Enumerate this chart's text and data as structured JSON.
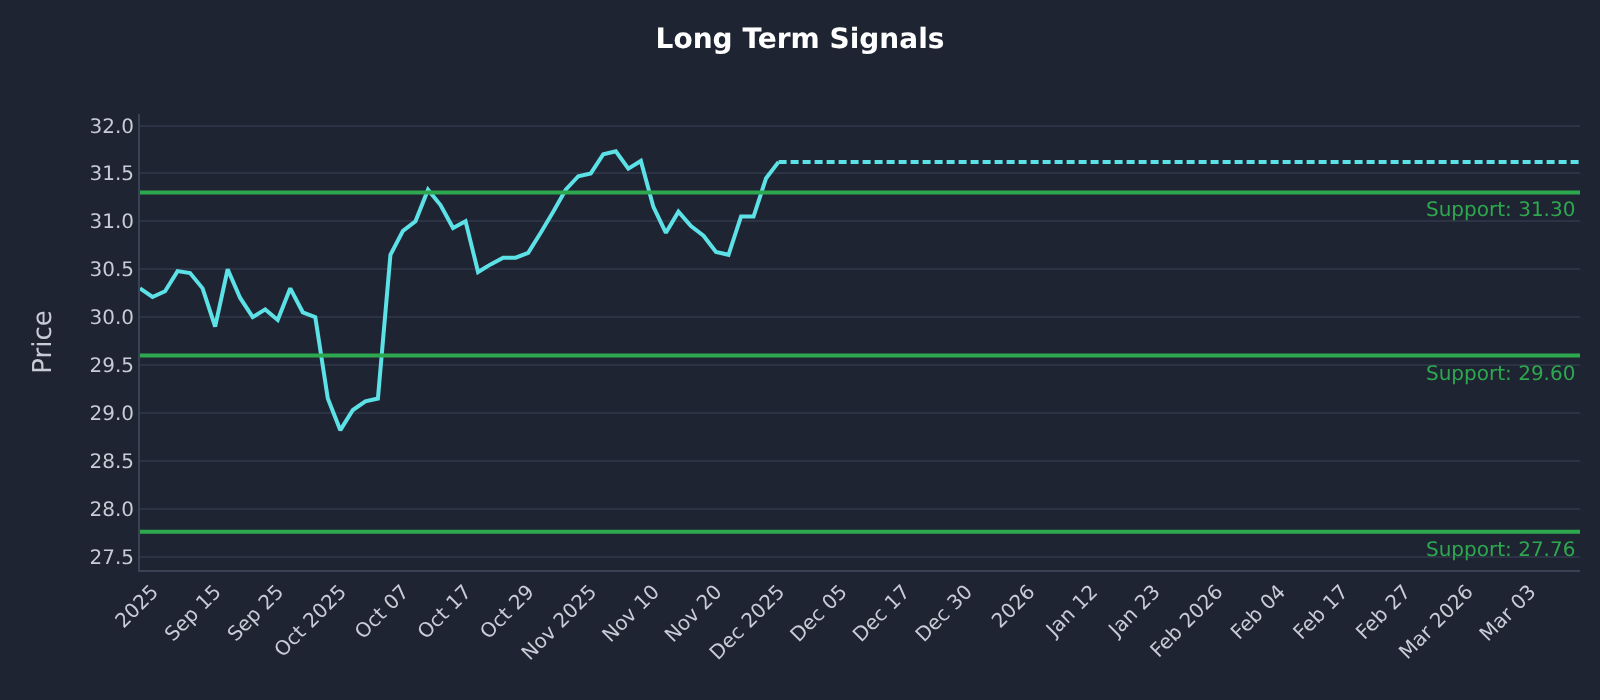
{
  "chart_data": {
    "type": "line",
    "title": "Long Term Signals",
    "ylabel": "Price",
    "categories": [
      null,
      "2025",
      null,
      null,
      null,
      null,
      "Sep 15",
      null,
      null,
      null,
      null,
      "Sep 25",
      null,
      null,
      null,
      null,
      "Oct 2025",
      null,
      null,
      null,
      null,
      "Oct 07",
      null,
      null,
      null,
      null,
      "Oct 17",
      null,
      null,
      null,
      null,
      "Oct 29",
      null,
      null,
      null,
      null,
      "Nov 2025",
      null,
      null,
      null,
      null,
      "Nov 10",
      null,
      null,
      null,
      null,
      "Nov 20",
      null,
      null,
      null,
      null,
      "Dec 2025",
      null,
      null,
      null,
      null,
      "Dec 05",
      null,
      null,
      null,
      null,
      "Dec 17",
      null,
      null,
      null,
      null,
      "Dec 30",
      null,
      null,
      null,
      null,
      "2026",
      null,
      null,
      null,
      null,
      "Jan 12",
      null,
      null,
      null,
      null,
      "Jan 23",
      null,
      null,
      null,
      null,
      "Feb 2026",
      null,
      null,
      null,
      null,
      "Feb 04",
      null,
      null,
      null,
      null,
      "Feb 17",
      null,
      null,
      null,
      null,
      "Feb 27",
      null,
      null,
      null,
      null,
      "Mar 2026",
      null,
      null,
      null,
      null,
      "Mar 03",
      null,
      null,
      null,
      null
    ],
    "series": [
      {
        "color": "#5ce1e6",
        "line_style": "solid",
        "values": [
          30.3,
          30.21,
          30.27,
          30.48,
          30.46,
          30.3,
          29.9,
          30.5,
          30.2,
          30.0,
          30.08,
          29.97,
          30.3,
          30.05,
          30.0,
          29.15,
          28.82,
          29.03,
          29.12,
          29.15,
          30.65,
          30.9,
          31.0,
          31.33,
          31.17,
          30.93,
          31.0,
          30.47,
          30.55,
          30.62,
          30.62,
          30.67,
          30.88,
          31.1,
          31.33,
          31.47,
          31.5,
          31.7,
          31.73,
          31.55,
          31.63,
          31.15,
          30.88,
          31.1,
          30.95,
          30.85,
          30.68,
          30.65,
          31.05,
          31.05,
          31.45,
          31.62,
          null,
          null,
          null,
          null,
          null,
          null,
          null,
          null,
          null,
          null,
          null,
          null,
          null,
          null,
          null,
          null,
          null,
          null,
          null,
          null,
          null,
          null,
          null,
          null,
          null,
          null,
          null,
          null,
          null,
          null,
          null,
          null,
          null,
          null,
          null,
          null,
          null,
          null,
          null,
          null,
          null,
          null,
          null,
          null,
          null,
          null,
          null,
          null,
          null,
          null,
          null,
          null,
          null,
          null,
          null,
          null,
          null,
          null,
          null,
          null,
          null,
          null,
          null,
          null
        ]
      },
      {
        "color": "#5ce1e6",
        "line_style": "dashed",
        "values": [
          null,
          null,
          null,
          null,
          null,
          null,
          null,
          null,
          null,
          null,
          null,
          null,
          null,
          null,
          null,
          null,
          null,
          null,
          null,
          null,
          null,
          null,
          null,
          null,
          null,
          null,
          null,
          null,
          null,
          null,
          null,
          null,
          null,
          null,
          null,
          null,
          null,
          null,
          null,
          null,
          null,
          null,
          null,
          null,
          null,
          null,
          null,
          null,
          null,
          null,
          null,
          31.62,
          31.62,
          31.62,
          31.62,
          31.62,
          31.62,
          31.62,
          31.62,
          31.62,
          31.62,
          31.62,
          31.62,
          31.62,
          31.62,
          31.62,
          31.62,
          31.62,
          31.62,
          31.62,
          31.62,
          31.62,
          31.62,
          31.62,
          31.62,
          31.62,
          31.62,
          31.62,
          31.62,
          31.62,
          31.62,
          31.62,
          31.62,
          31.62,
          31.62,
          31.62,
          31.62,
          31.62,
          31.62,
          31.62,
          31.62,
          31.62,
          31.62,
          31.62,
          31.62,
          31.62,
          31.62,
          31.62,
          31.62,
          31.62,
          31.62,
          31.62,
          31.62,
          31.62,
          31.62,
          31.62,
          31.62,
          31.62,
          31.62,
          31.62,
          31.62,
          31.62,
          31.62,
          31.62,
          31.62,
          31.62
        ]
      }
    ],
    "ylim": [
      27.36,
      32.12
    ],
    "yticks": [
      27.5,
      {
        "value": 28,
        "label": "28.0"
      },
      28.5,
      {
        "value": 29,
        "label": "29.0"
      },
      29.5,
      {
        "value": 30,
        "label": "30.0"
      },
      30.5,
      {
        "value": 31,
        "label": "31.0"
      },
      31.5,
      {
        "value": 32,
        "label": "32.0"
      }
    ],
    "ref_lines": [
      {
        "axis": "y",
        "value": 31.3,
        "label": "Support: 31.30",
        "color": "#2ea84f"
      },
      {
        "axis": "y",
        "value": 29.6,
        "label": "Support: 29.60",
        "color": "#2ea84f"
      },
      {
        "axis": "y",
        "value": 27.76,
        "label": "Support: 27.76",
        "color": "#2ea84f"
      }
    ],
    "grid": "y",
    "marker": "none"
  }
}
